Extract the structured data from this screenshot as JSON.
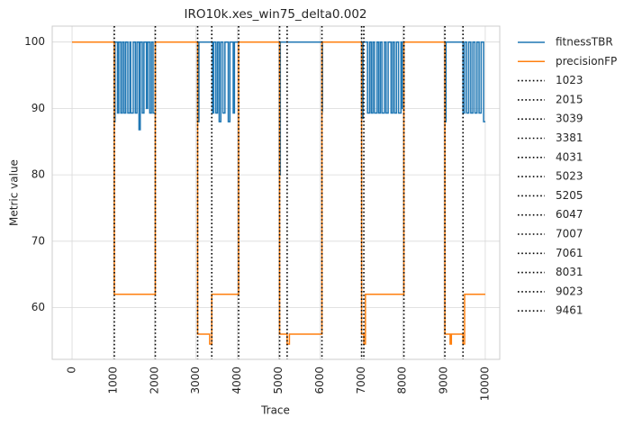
{
  "chart_data": {
    "type": "line",
    "title": "IRO10k.xes_win75_delta0.002",
    "x_label": "Trace",
    "y_label": "Metric value",
    "drawstyle": "steps-post",
    "grid": true,
    "legend": "outside right",
    "xlim": [
      -480,
      10350
    ],
    "ylim": [
      52.2,
      102.4
    ],
    "xticks": [
      0,
      1000,
      2000,
      3000,
      4000,
      5000,
      6000,
      7000,
      8000,
      9000,
      10000
    ],
    "yticks": [
      60,
      70,
      80,
      90,
      100
    ],
    "series": [
      {
        "name": "fitnessTBR",
        "color": "#1f77b4",
        "x": [
          0,
          1023,
          1040,
          1100,
          1130,
          1180,
          1220,
          1260,
          1300,
          1350,
          1400,
          1420,
          1480,
          1530,
          1570,
          1620,
          1650,
          1700,
          1740,
          1800,
          1830,
          1880,
          1920,
          1960,
          2015,
          3039,
          3070,
          3400,
          3430,
          3480,
          3520,
          3560,
          3600,
          3650,
          3700,
          3780,
          3820,
          3900,
          3930,
          5023,
          5040,
          6047,
          6060,
          7007,
          7040,
          7150,
          7200,
          7240,
          7280,
          7320,
          7380,
          7420,
          7460,
          7500,
          7560,
          7600,
          7650,
          7720,
          7760,
          7800,
          7850,
          7900,
          7960,
          7990,
          8031,
          9023,
          9050,
          9461,
          9500,
          9550,
          9600,
          9650,
          9700,
          9750,
          9800,
          9850,
          9900,
          9960,
          10000
        ],
        "values": [
          100,
          88,
          100,
          89.3,
          100,
          89.3,
          100,
          89.3,
          100,
          89.3,
          100,
          89.3,
          100,
          89.3,
          100,
          86.8,
          100,
          89.3,
          100,
          90,
          100,
          89.3,
          100,
          89.3,
          100,
          88,
          100,
          89.3,
          100,
          89.3,
          100,
          88,
          100,
          89.3,
          100,
          88,
          100,
          89.3,
          100,
          80,
          100,
          89.5,
          100,
          88.5,
          100,
          89.3,
          100,
          89.3,
          100,
          89.3,
          100,
          89.3,
          100,
          89.3,
          100,
          89.3,
          100,
          89.3,
          100,
          89.3,
          100,
          89.3,
          100,
          90,
          100,
          88,
          100,
          89.3,
          100,
          89.3,
          100,
          89.3,
          100,
          89.3,
          100,
          89.3,
          100,
          88,
          88
        ]
      },
      {
        "name": "precisionFP",
        "color": "#ff7f0e",
        "x": [
          0,
          1023,
          2015,
          3039,
          3330,
          3381,
          4031,
          5023,
          5205,
          5260,
          6047,
          7007,
          7061,
          7100,
          8031,
          9023,
          9150,
          9180,
          9461,
          9500,
          10000
        ],
        "values": [
          100,
          62,
          100,
          56,
          54.5,
          62,
          100,
          56,
          54.5,
          56,
          100,
          56,
          54.5,
          62,
          100,
          56,
          54.5,
          56,
          54.5,
          62,
          62
        ]
      }
    ],
    "drifts": {
      "color": "#000000",
      "values": [
        1023,
        2015,
        3039,
        3381,
        4031,
        5023,
        5205,
        6047,
        7007,
        7061,
        8031,
        9023,
        9461
      ]
    }
  }
}
